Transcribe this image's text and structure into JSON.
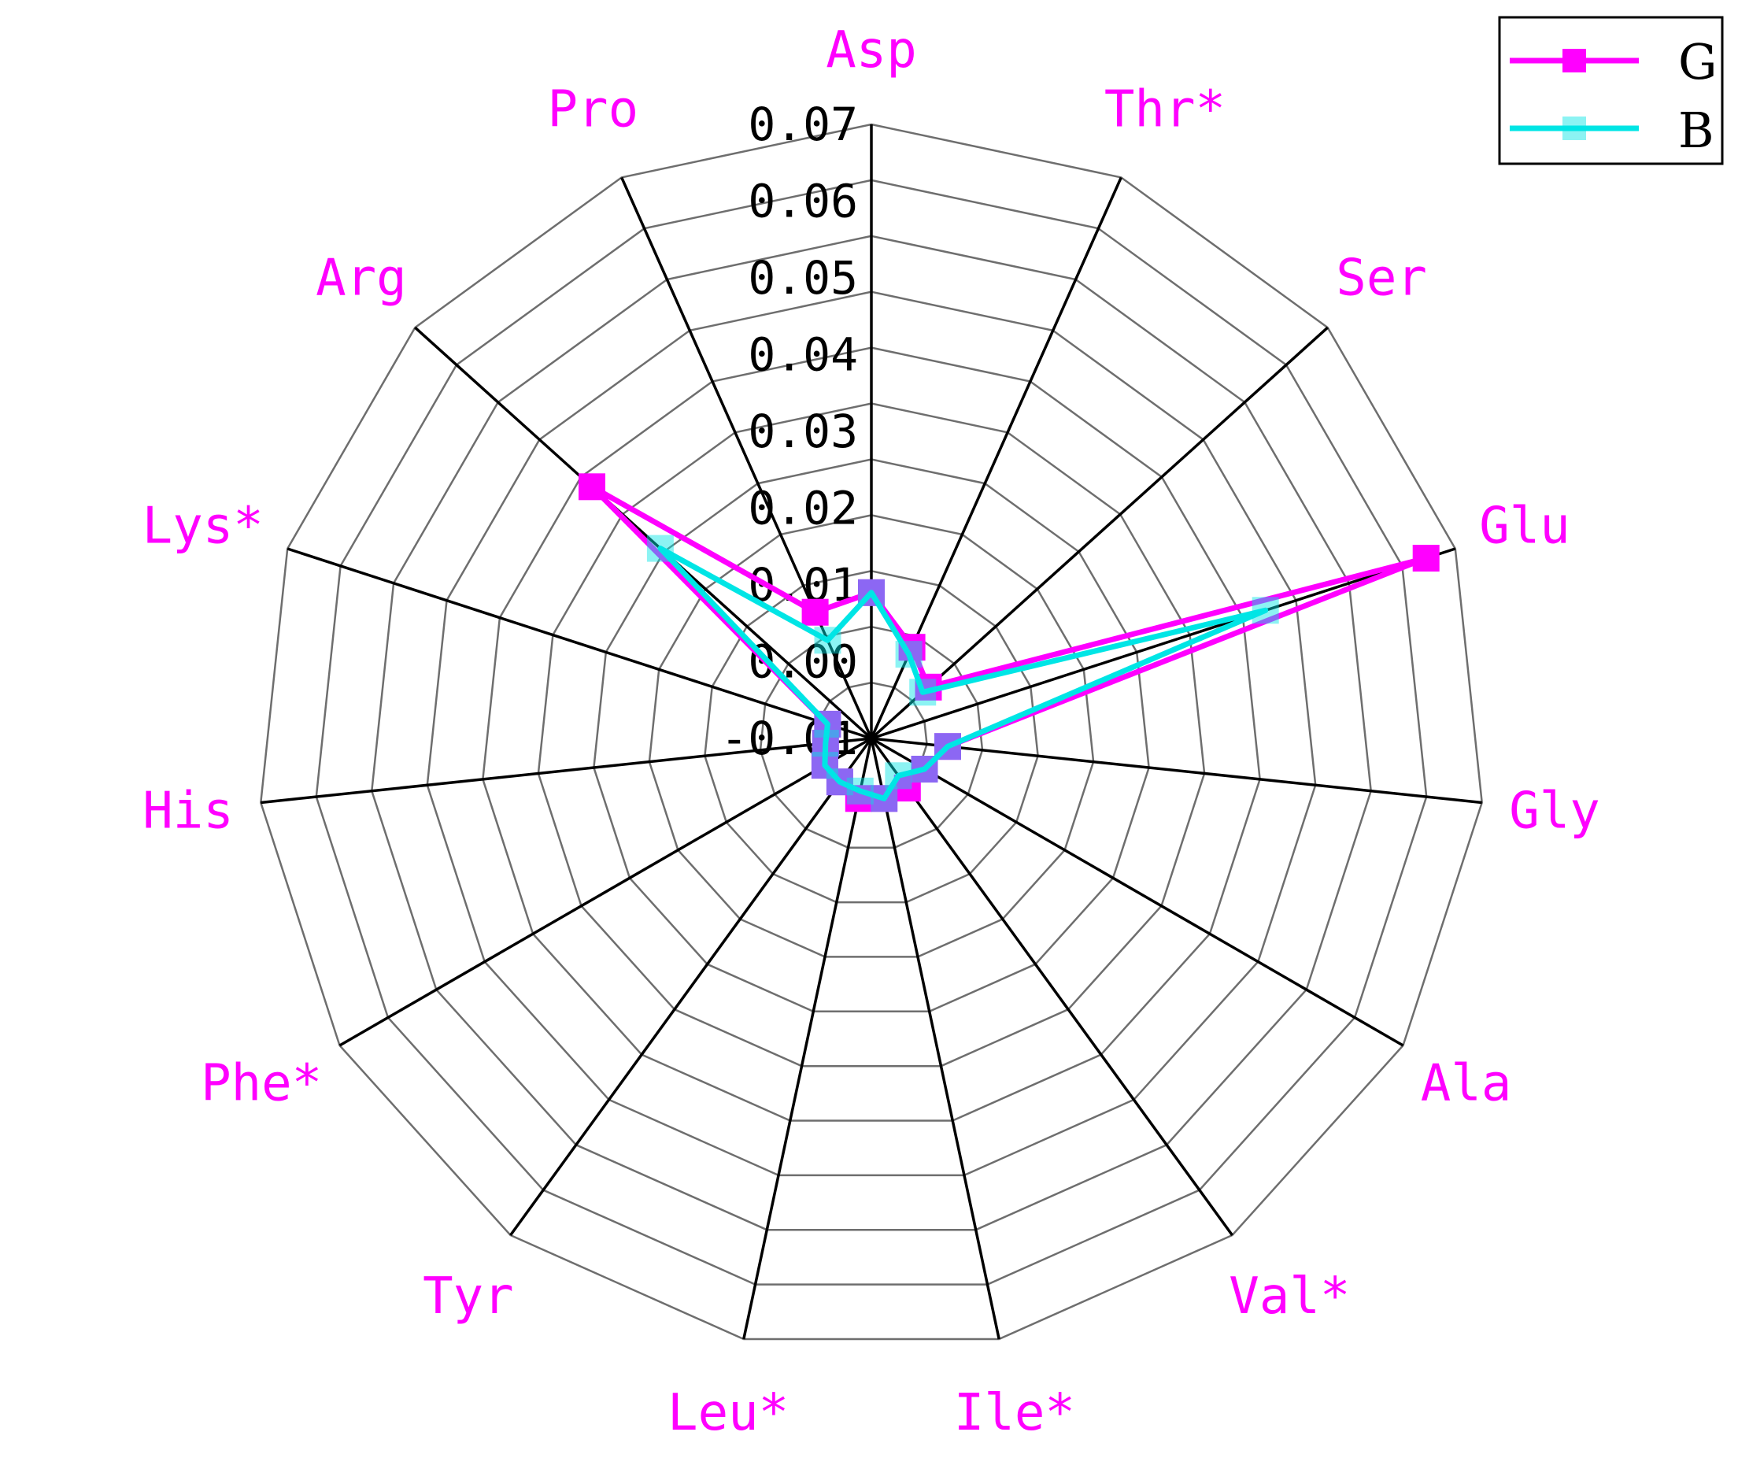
{
  "chart_data": {
    "type": "radar",
    "categories": [
      "Asp",
      "Thr*",
      "Ser",
      "Glu",
      "Gly",
      "Ala",
      "Val*",
      "Ile*",
      "Leu*",
      "Tyr",
      "Phe*",
      "His",
      "Lys*",
      "Arg",
      "Pro"
    ],
    "rlim": [
      -0.01,
      0.07
    ],
    "ticks": [
      "-0.01",
      "0.00",
      "0.01",
      "0.02",
      "0.03",
      "0.04",
      "0.05",
      "0.06",
      "0.07"
    ],
    "tick_values": [
      -0.01,
      0.0,
      0.01,
      0.02,
      0.03,
      0.04,
      0.05,
      0.06,
      0.07
    ],
    "grid": true,
    "legend_position": "top-right",
    "series": [
      {
        "name": "G",
        "color": "#ff00ff",
        "marker": "square",
        "values": [
          0.009,
          0.003,
          0.0,
          0.066,
          0.0,
          -0.002,
          -0.002,
          -0.002,
          -0.002,
          -0.003,
          -0.003,
          -0.004,
          -0.004,
          0.039,
          0.008
        ]
      },
      {
        "name": "B",
        "color": "#00e5e5",
        "marker": "square",
        "values": [
          0.009,
          0.002,
          -0.001,
          0.044,
          0.0,
          -0.002,
          -0.004,
          -0.002,
          -0.003,
          -0.003,
          -0.003,
          -0.004,
          -0.004,
          0.027,
          0.004
        ]
      }
    ],
    "label_color": "#ff00ff"
  }
}
